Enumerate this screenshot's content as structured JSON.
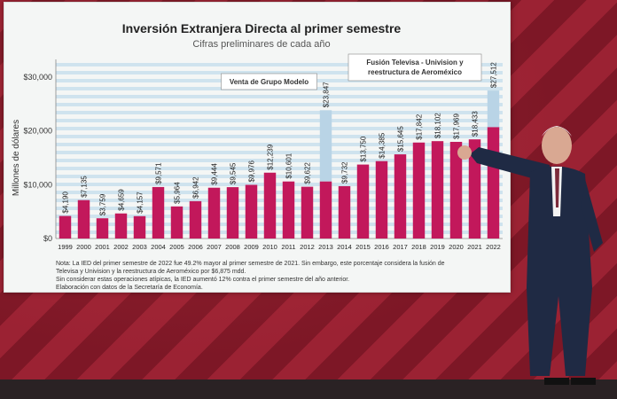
{
  "chart_data": {
    "type": "bar",
    "title": "Inversión Extranjera Directa al primer semestre",
    "subtitle": "Cifras preliminares de cada año",
    "ylabel": "Millones de dólares",
    "xlabel": "",
    "ylim": [
      0,
      30000
    ],
    "yticks": [
      0,
      10000,
      20000,
      30000
    ],
    "ytick_labels": [
      "$0",
      "$10,000",
      "$20,000",
      "$30,000"
    ],
    "grid": true,
    "categories": [
      "1999",
      "2000",
      "2001",
      "2002",
      "2003",
      "2004",
      "2005",
      "2006",
      "2007",
      "2008",
      "2009",
      "2010",
      "2011",
      "2012",
      "2013",
      "2014",
      "2015",
      "2016",
      "2017",
      "2018",
      "2019",
      "2020",
      "2021",
      "2022"
    ],
    "values": [
      4190,
      7135,
      3759,
      4659,
      4157,
      9571,
      5964,
      6942,
      9444,
      9545,
      9976,
      12239,
      10601,
      9622,
      23847,
      9732,
      13750,
      14385,
      15645,
      17842,
      18102,
      17969,
      18433,
      27512
    ],
    "data_labels": [
      "$4,190",
      "$7,135",
      "$3,759",
      "$4,659",
      "$4,157",
      "$9,571",
      "$5,964",
      "$6,942",
      "$9,444",
      "$9,545",
      "$9,976",
      "$12,239",
      "$10,601",
      "$9,622",
      "$23,847",
      "$9,732",
      "$13,750",
      "$14,385",
      "$15,645",
      "$17,842",
      "$18,102",
      "$17,969",
      "$18,433",
      "$27,512"
    ],
    "extraordinary": [
      {
        "category": "2013",
        "base": 10600
      },
      {
        "category": "2022",
        "base": 20700
      }
    ],
    "annotations": [
      {
        "text": "Venta de Grupo Modelo",
        "category": "2013"
      },
      {
        "text_lines": [
          "Fusión Televisa - Univision y",
          "reestructura de Aeroméxico"
        ],
        "category": "2022"
      }
    ],
    "colors": {
      "bar": "#c2185b",
      "extraordinary": "#b9d4e6",
      "grid": "#cfe3ee"
    }
  },
  "note": {
    "lines": [
      "Nota: La IED del primer semestre de 2022 fue 49.2% mayor al primer semestre de 2021. Sin embargo, este porcentaje considera la fusión de",
      "Televisa y Univision y la reestructura de Aeroméxico por $6,875 mdd.",
      "Sin considerar estas operaciones atípicas, la IED aumentó 12% contra el primer semestre del año anterior.",
      "Elaboración con datos de la Secretaría de Economía."
    ]
  }
}
